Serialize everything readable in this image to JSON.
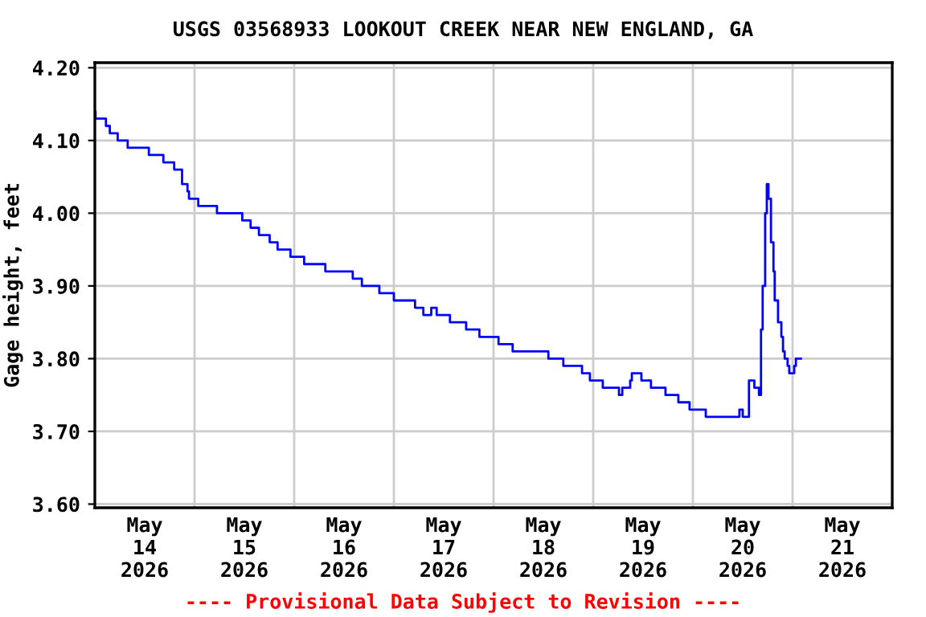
{
  "chart_data": {
    "type": "step",
    "title": "USGS 03568933 LOOKOUT CREEK NEAR NEW ENGLAND, GA",
    "ylabel": "Gage height, feet",
    "annotations": [
      "---- Provisional Data Subject to Revision ----"
    ],
    "xlim": [
      "2026-05-14",
      "2026-05-22"
    ],
    "xticks": [
      {
        "value": "2026-05-14T12:00",
        "label": "May\n14\n2026"
      },
      {
        "value": "2026-05-15T12:00",
        "label": "May\n15\n2026"
      },
      {
        "value": "2026-05-16T12:00",
        "label": "May\n16\n2026"
      },
      {
        "value": "2026-05-17T12:00",
        "label": "May\n17\n2026"
      },
      {
        "value": "2026-05-18T12:00",
        "label": "May\n18\n2026"
      },
      {
        "value": "2026-05-19T12:00",
        "label": "May\n19\n2026"
      },
      {
        "value": "2026-05-20T12:00",
        "label": "May\n20\n2026"
      },
      {
        "value": "2026-05-21T12:00",
        "label": "May\n21\n2026"
      },
      {
        "value": "2026-05-15",
        "label": null
      },
      {
        "value": "2026-05-16",
        "label": null
      },
      {
        "value": "2026-05-17",
        "label": null
      },
      {
        "value": "2026-05-18",
        "label": null
      },
      {
        "value": "2026-05-19",
        "label": null
      },
      {
        "value": "2026-05-20",
        "label": null
      },
      {
        "value": "2026-05-21",
        "label": null
      }
    ],
    "ylim": [
      3.595,
      4.207
    ],
    "yticks": [
      {
        "value": 3.6,
        "label": "3.60"
      },
      {
        "value": 3.7,
        "label": "3.70"
      },
      {
        "value": 3.8,
        "label": "3.80"
      },
      {
        "value": 3.9,
        "label": "3.90"
      },
      {
        "value": 4.0,
        "label": "4.00"
      },
      {
        "value": 4.1,
        "label": "4.10"
      },
      {
        "value": 4.2,
        "label": "4.20"
      }
    ],
    "grid": true,
    "series": [
      {
        "color": "#0000ff",
        "x": [
          "2026-05-14T00:00",
          "2026-05-14T00:10",
          "2026-05-14T02:40",
          "2026-05-14T03:36",
          "2026-05-14T05:30",
          "2026-05-14T07:54",
          "2026-05-14T13:00",
          "2026-05-14T16:30",
          "2026-05-14T19:06",
          "2026-05-14T21:00",
          "2026-05-14T22:18",
          "2026-05-14T22:40",
          "2026-05-15T00:54",
          "2026-05-15T05:24",
          "2026-05-15T11:30",
          "2026-05-15T13:30",
          "2026-05-15T15:30",
          "2026-05-15T18:06",
          "2026-05-15T20:00",
          "2026-05-15T23:06",
          "2026-05-16T02:24",
          "2026-05-16T07:30",
          "2026-05-16T14:06",
          "2026-05-16T16:18",
          "2026-05-16T20:30",
          "2026-05-17T00:00",
          "2026-05-17T05:06",
          "2026-05-17T07:06",
          "2026-05-17T09:00",
          "2026-05-17T10:18",
          "2026-05-17T13:30",
          "2026-05-17T17:24",
          "2026-05-17T20:36",
          "2026-05-18T01:12",
          "2026-05-18T04:36",
          "2026-05-18T13:12",
          "2026-05-18T16:48",
          "2026-05-18T21:18",
          "2026-05-18T23:12",
          "2026-05-19T02:18",
          "2026-05-19T06:12",
          "2026-05-19T07:00",
          "2026-05-19T08:54",
          "2026-05-19T09:18",
          "2026-05-19T11:36",
          "2026-05-19T13:54",
          "2026-05-19T17:24",
          "2026-05-19T20:30",
          "2026-05-19T23:12",
          "2026-05-20T03:06",
          "2026-05-20T11:12",
          "2026-05-20T12:00",
          "2026-05-20T13:30",
          "2026-05-20T14:48",
          "2026-05-20T15:54",
          "2026-05-20T16:24",
          "2026-05-20T16:48",
          "2026-05-20T17:24",
          "2026-05-20T17:48",
          "2026-05-20T18:12",
          "2026-05-20T18:48",
          "2026-05-20T19:24",
          "2026-05-20T19:42",
          "2026-05-20T20:30",
          "2026-05-20T21:18",
          "2026-05-20T21:42",
          "2026-05-20T22:06",
          "2026-05-20T22:48",
          "2026-05-20T23:12",
          "2026-05-21T00:24",
          "2026-05-21T00:48",
          "2026-05-21T02:00"
        ],
        "values": [
          4.14,
          4.13,
          4.12,
          4.11,
          4.1,
          4.09,
          4.08,
          4.07,
          4.06,
          4.04,
          4.03,
          4.02,
          4.01,
          4.0,
          3.99,
          3.98,
          3.97,
          3.96,
          3.95,
          3.94,
          3.93,
          3.92,
          3.91,
          3.9,
          3.89,
          3.88,
          3.87,
          3.86,
          3.87,
          3.86,
          3.85,
          3.84,
          3.83,
          3.82,
          3.81,
          3.8,
          3.79,
          3.78,
          3.77,
          3.76,
          3.75,
          3.76,
          3.77,
          3.78,
          3.77,
          3.76,
          3.75,
          3.74,
          3.73,
          3.72,
          3.73,
          3.72,
          3.77,
          3.76,
          3.75,
          3.84,
          3.9,
          4.0,
          4.04,
          4.02,
          3.96,
          3.92,
          3.88,
          3.85,
          3.83,
          3.81,
          3.8,
          3.79,
          3.78,
          3.79,
          3.8,
          3.8
        ]
      }
    ]
  }
}
